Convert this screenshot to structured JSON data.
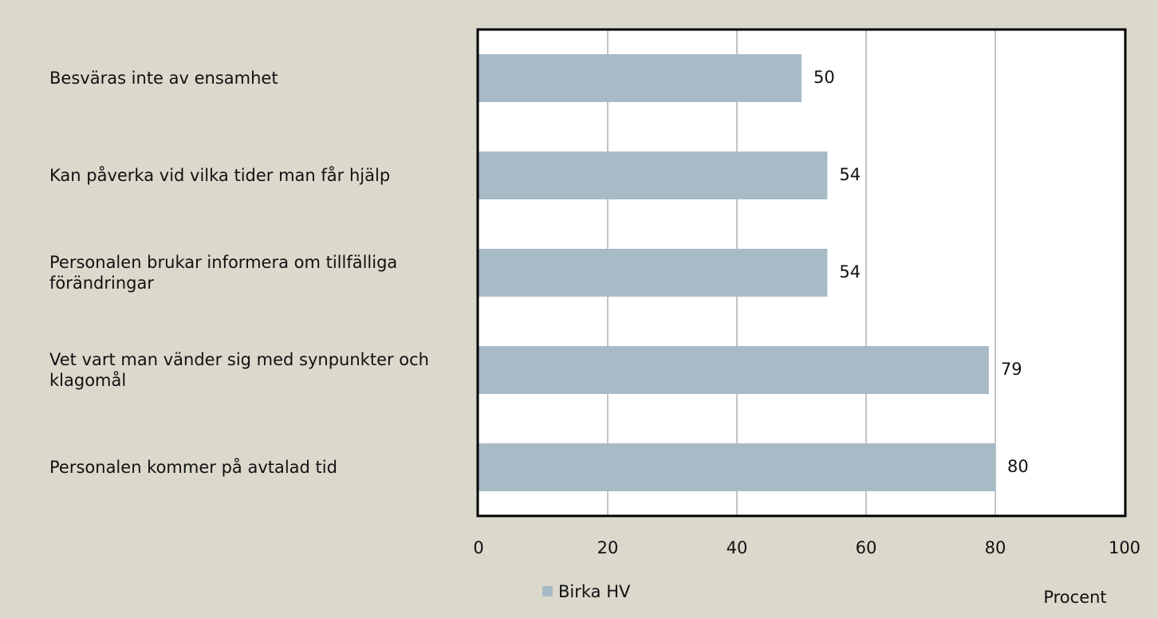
{
  "chart_data": {
    "type": "barh",
    "categories": [
      "Besväras inte av ensamhet",
      "Kan påverka vid vilka tider man får hjälp",
      "Personalen brukar informera om tillfälliga förändringar",
      "Vet vart man vänder sig med synpunkter och klagomål",
      "Personalen kommer på avtalad tid"
    ],
    "series": [
      {
        "name": "Birka HV",
        "color": "#a7bac5",
        "values": [
          50,
          54,
          54,
          79,
          80
        ]
      }
    ],
    "xlim": [
      0,
      100
    ],
    "xticks": [
      0,
      20,
      40,
      60,
      80,
      100
    ],
    "xlabel": "Procent",
    "grid": true,
    "legend": "bottom"
  }
}
